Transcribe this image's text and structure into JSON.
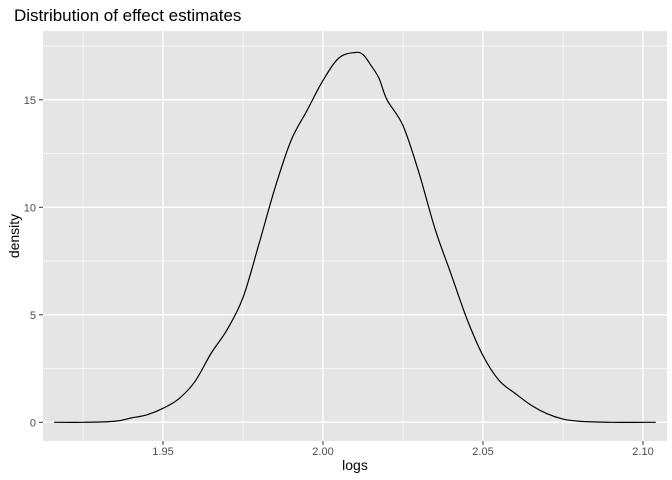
{
  "chart_data": {
    "type": "line",
    "title": "Distribution of effect estimates",
    "xlabel": "logs",
    "ylabel": "density",
    "xlim": [
      1.9125,
      2.1075
    ],
    "ylim": [
      -0.87,
      18.2
    ],
    "x_ticks": [
      "1.95",
      "2.00",
      "2.05",
      "2.10"
    ],
    "y_ticks": [
      "0",
      "5",
      "10",
      "15"
    ],
    "grid": true,
    "legend": "none",
    "panel_color": "#e5e5e5",
    "grid_color": "#ffffff",
    "line_color": "#000000",
    "series": [
      {
        "x": [
          1.916,
          1.925,
          1.935,
          1.94,
          1.945,
          1.95,
          1.955,
          1.96,
          1.965,
          1.97,
          1.975,
          1.98,
          1.985,
          1.99,
          1.995,
          2.0,
          2.005,
          2.01,
          2.0125,
          2.015,
          2.0175,
          2.02,
          2.025,
          2.03,
          2.035,
          2.04,
          2.045,
          2.05,
          2.055,
          2.06,
          2.065,
          2.07,
          2.075,
          2.08,
          2.09,
          2.104
        ],
        "y": [
          0.0,
          0.0,
          0.05,
          0.2,
          0.35,
          0.65,
          1.1,
          1.9,
          3.2,
          4.3,
          5.8,
          8.3,
          10.9,
          13.1,
          14.5,
          15.9,
          16.95,
          17.2,
          17.1,
          16.6,
          16.0,
          15.0,
          13.8,
          11.6,
          9.0,
          6.9,
          4.8,
          3.1,
          1.95,
          1.35,
          0.8,
          0.4,
          0.15,
          0.05,
          0.0,
          0.0
        ]
      }
    ]
  }
}
